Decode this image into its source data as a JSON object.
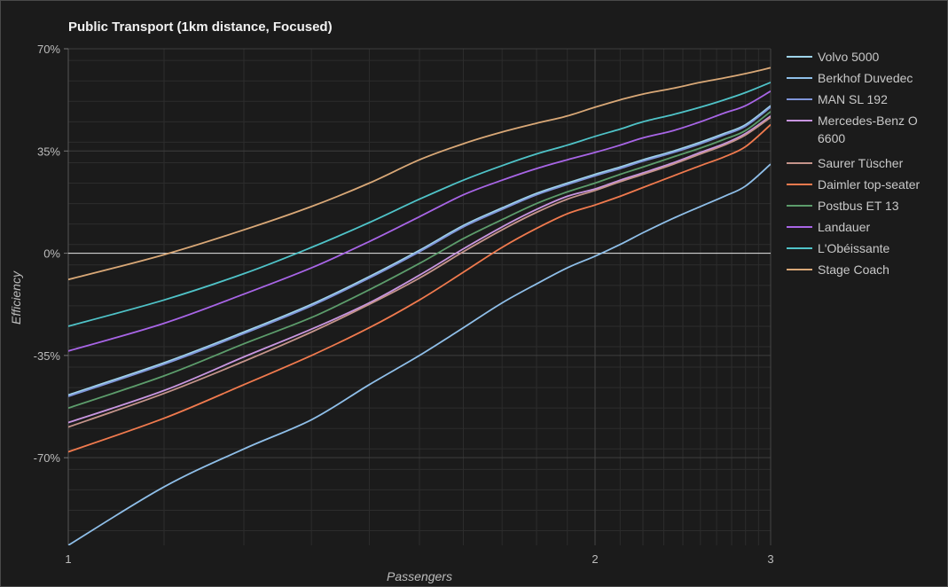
{
  "chart_data": {
    "type": "line",
    "title": "Public Transport (1km distance, Focused)",
    "xlabel": "Passengers",
    "ylabel": "Efficiency",
    "x_scale": "reciprocal",
    "xlim": [
      1,
      3
    ],
    "ylim": [
      -100,
      70
    ],
    "x_ticks": [
      "1",
      "2",
      "3"
    ],
    "y_ticks": [
      {
        "value": 70,
        "label": "70%"
      },
      {
        "value": 35,
        "label": "35%"
      },
      {
        "value": 0,
        "label": "0%"
      },
      {
        "value": -35,
        "label": "-35%"
      },
      {
        "value": -70,
        "label": "-70%"
      }
    ],
    "zero_line": true,
    "grid": true,
    "legend_position": "right",
    "x": [
      1,
      1.1,
      1.2,
      1.3,
      1.4,
      1.5,
      1.6,
      1.7,
      1.8,
      1.9,
      2,
      2.1,
      2.2,
      2.35,
      2.5,
      2.65,
      2.8,
      3
    ],
    "series": [
      {
        "name": "Volvo 5000",
        "color": "#9fd4ea",
        "values": [
          -48.5,
          -37.5,
          -27,
          -17.5,
          -8,
          1,
          9.5,
          15.5,
          20.5,
          24,
          27,
          29.5,
          32,
          35,
          38,
          41,
          44,
          50.5
        ]
      },
      {
        "name": "Berkhof Duvedec",
        "color": "#8fbfe9",
        "values": [
          -100,
          -80,
          -67,
          -57,
          -45,
          -35,
          -25.5,
          -17,
          -10.5,
          -5,
          -1,
          3,
          7,
          12,
          16,
          19.5,
          23,
          30.5
        ]
      },
      {
        "name": "MAN SL 192",
        "color": "#7f95d9",
        "values": [
          -49,
          -38,
          -27.5,
          -18,
          -8.5,
          0.5,
          9,
          15,
          20,
          23.5,
          26.5,
          29,
          31.5,
          34.5,
          37.5,
          40.5,
          43.5,
          50
        ]
      },
      {
        "name": "Mercedes-Benz O 6600",
        "color": "#c895e0",
        "values": [
          -58,
          -47,
          -35.5,
          -26,
          -17,
          -7.5,
          1.5,
          9,
          15,
          19.5,
          22,
          25,
          27.5,
          31,
          34.5,
          37.5,
          41,
          47
        ]
      },
      {
        "name": "Saurer Tüscher",
        "color": "#c4938a",
        "values": [
          -59.5,
          -48,
          -37,
          -27,
          -17.5,
          -8.5,
          0.5,
          8,
          14,
          18.5,
          21.5,
          24.5,
          27,
          30.5,
          34,
          37,
          40.5,
          46.5
        ]
      },
      {
        "name": "Daimler top-seater",
        "color": "#f07a4e",
        "values": [
          -68,
          -56.5,
          -45,
          -35,
          -25.5,
          -16,
          -6.5,
          2,
          8.5,
          13.5,
          16.5,
          19.5,
          22.5,
          26.5,
          30,
          33,
          36.5,
          44
        ]
      },
      {
        "name": "Postbus ET 13",
        "color": "#5c9c6b",
        "values": [
          -53,
          -42,
          -31,
          -22,
          -12.5,
          -3.5,
          5,
          11.5,
          17,
          21,
          24,
          27,
          29.5,
          33,
          36,
          39,
          42,
          48.5
        ]
      },
      {
        "name": "Landauer",
        "color": "#a865e6",
        "values": [
          -33.5,
          -24,
          -14,
          -5,
          4,
          12.5,
          20,
          25,
          29,
          32,
          34.5,
          37,
          39.5,
          42,
          45,
          48,
          50.5,
          55.5
        ]
      },
      {
        "name": "L'Obéissante",
        "color": "#4fc3c8",
        "values": [
          -25,
          -16,
          -7,
          2,
          10.5,
          18.5,
          25,
          30,
          34,
          37,
          40,
          42.5,
          45,
          47.5,
          50,
          52.5,
          55,
          58.5
        ]
      },
      {
        "name": "Stage Coach",
        "color": "#d9a877",
        "values": [
          -9,
          -0.5,
          8,
          16,
          24,
          32,
          37.5,
          41.5,
          44.5,
          47,
          50,
          52.5,
          54.5,
          56.5,
          58.5,
          60,
          61.5,
          63.5
        ]
      }
    ]
  }
}
